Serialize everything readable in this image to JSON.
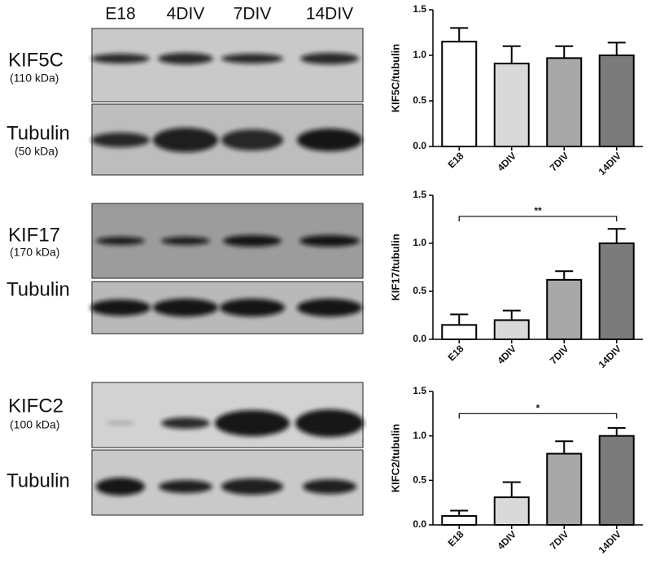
{
  "blots": {
    "lanes": [
      "E18",
      "4DIV",
      "7DIV",
      "14DIV"
    ],
    "panels": [
      {
        "protein": "KIF5C",
        "size": "(110 kDa)",
        "loading": "Tubulin",
        "loading_size": "(50 kDa)"
      },
      {
        "protein": "KIF17",
        "size": "(170 kDa)",
        "loading": "Tubulin"
      },
      {
        "protein": "KIFC2",
        "size": "(100 kDa)",
        "loading": "Tubulin"
      }
    ]
  },
  "chart_data": [
    {
      "type": "bar",
      "ylabel": "KIF5C/tubulin",
      "categories": [
        "E18",
        "4DIV",
        "7DIV",
        "14DIV"
      ],
      "values": [
        1.15,
        0.91,
        0.97,
        1.0
      ],
      "errors": [
        0.15,
        0.19,
        0.13,
        0.14
      ],
      "colors": [
        "#ffffff",
        "#d9d9d9",
        "#a8a8a8",
        "#7b7b7b"
      ],
      "ylim": [
        0,
        1.5
      ],
      "yticks": [
        {
          "value": 0,
          "label": "0.0"
        },
        {
          "value": 0.5,
          "label": "0.5"
        },
        {
          "value": 1,
          "label": "1.0"
        },
        {
          "value": 1.5,
          "label": "1.5"
        }
      ]
    },
    {
      "type": "bar",
      "ylabel": "KIF17/tubulin",
      "categories": [
        "E18",
        "4DIV",
        "7DIV",
        "14DIV"
      ],
      "values": [
        0.15,
        0.2,
        0.62,
        1.0
      ],
      "errors": [
        0.11,
        0.1,
        0.09,
        0.15
      ],
      "colors": [
        "#ffffff",
        "#d9d9d9",
        "#a8a8a8",
        "#7b7b7b"
      ],
      "ylim": [
        0,
        1.5
      ],
      "yticks": [
        {
          "value": 0,
          "label": "0.0"
        },
        {
          "value": 0.5,
          "label": "0.5"
        },
        {
          "value": 1,
          "label": "1.0"
        },
        {
          "value": 1.5,
          "label": "1.5"
        }
      ],
      "significance": {
        "label": "**",
        "between": [
          "E18",
          "14DIV"
        ],
        "y": 1.28
      }
    },
    {
      "type": "bar",
      "ylabel": "KIFC2/tubulin",
      "categories": [
        "E18",
        "4DIV",
        "7DIV",
        "14DIV"
      ],
      "values": [
        0.1,
        0.31,
        0.8,
        1.0
      ],
      "errors": [
        0.06,
        0.17,
        0.14,
        0.09
      ],
      "colors": [
        "#ffffff",
        "#d9d9d9",
        "#a8a8a8",
        "#7b7b7b"
      ],
      "ylim": [
        0,
        1.5
      ],
      "yticks": [
        {
          "value": 0,
          "label": "0.0"
        },
        {
          "value": 0.5,
          "label": "0.5"
        },
        {
          "value": 1,
          "label": "1.0"
        },
        {
          "value": 1.5,
          "label": "1.5"
        }
      ],
      "significance": {
        "label": "*",
        "between": [
          "E18",
          "14DIV"
        ],
        "y": 1.25
      }
    }
  ]
}
